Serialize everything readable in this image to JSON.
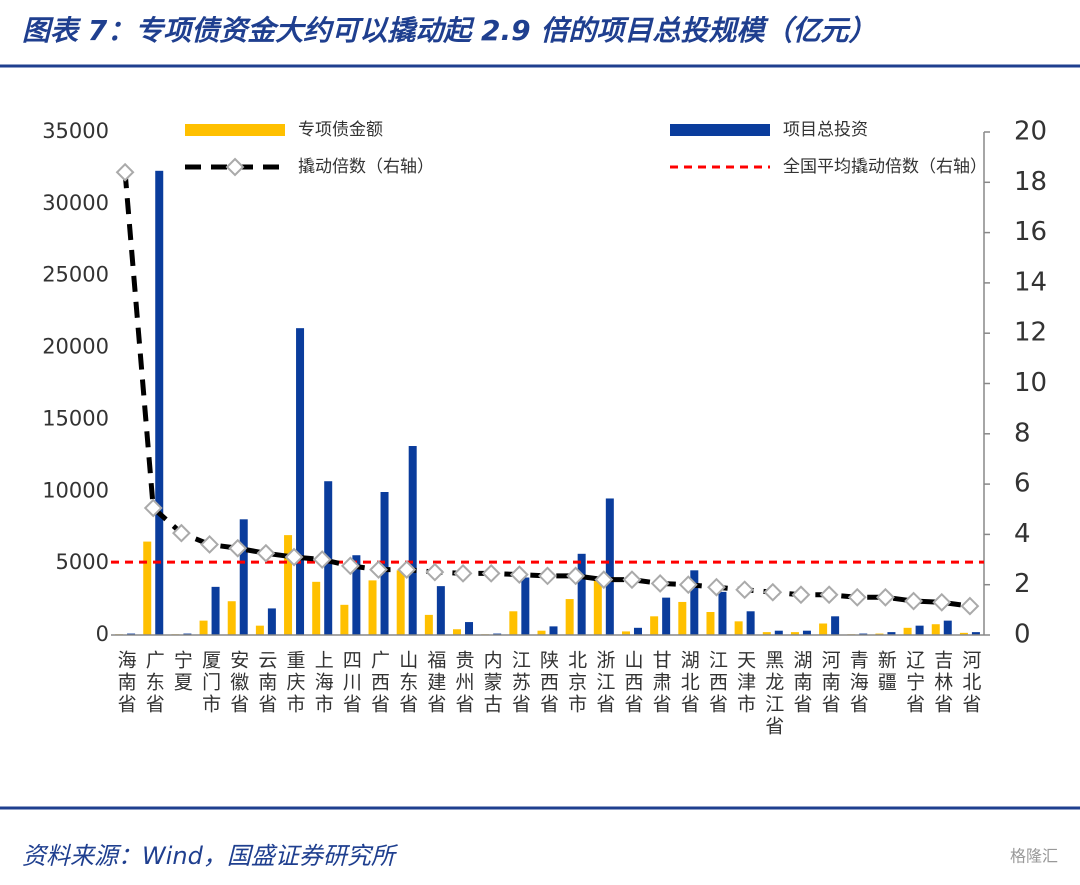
{
  "title": "图表 7：专项债资金大约可以撬动起 2.9 倍的项目总投规模（亿元）",
  "source": "资料来源：Wind，国盛证券研究所",
  "watermark": "格隆汇",
  "chart_data": {
    "type": "bar",
    "categories": [
      "海南省",
      "广东省",
      "宁夏",
      "厦门市",
      "安徽省",
      "云南省",
      "重庆市",
      "上海市",
      "四川省",
      "广西省",
      "山东省",
      "福建省",
      "贵州省",
      "内蒙古",
      "江苏省",
      "陕西省",
      "北京市",
      "浙江省",
      "山西省",
      "甘肃省",
      "湖北省",
      "江西省",
      "天津市",
      "黑龙江省",
      "湖南省",
      "河南省",
      "青海省",
      "新疆",
      "辽宁省",
      "吉林省",
      "河北省"
    ],
    "series": [
      {
        "name": "专项债金额",
        "type": "bar",
        "color": "#ffc000",
        "values": [
          50,
          6500,
          50,
          1000,
          2350,
          650,
          6950,
          3700,
          2100,
          3800,
          4500,
          1400,
          400,
          50,
          1650,
          300,
          2500,
          3800,
          250,
          1300,
          2300,
          1600,
          950,
          200,
          200,
          800,
          50,
          100,
          500,
          750,
          150
        ]
      },
      {
        "name": "项目总投资",
        "type": "bar",
        "color": "#0a3c9c",
        "values": [
          100,
          32300,
          100,
          3350,
          8050,
          1850,
          21350,
          10700,
          5550,
          9950,
          13150,
          3400,
          900,
          100,
          4000,
          600,
          5650,
          9500,
          500,
          2600,
          4500,
          3000,
          1650,
          300,
          300,
          1300,
          100,
          200,
          650,
          1000,
          200
        ]
      },
      {
        "name": "撬动倍数（右轴）",
        "type": "line",
        "axis": "y2",
        "color": "#000000",
        "values": [
          18.4,
          5.05,
          4.05,
          3.6,
          3.45,
          3.25,
          3.1,
          3.0,
          2.75,
          2.6,
          2.6,
          2.5,
          2.45,
          2.45,
          2.4,
          2.35,
          2.35,
          2.2,
          2.2,
          2.05,
          2.0,
          1.9,
          1.8,
          1.7,
          1.6,
          1.6,
          1.5,
          1.5,
          1.35,
          1.3,
          1.15
        ]
      }
    ],
    "reference_lines": [
      {
        "name": "全国平均撬动倍数（右轴）",
        "value": 2.9,
        "axis": "y2",
        "color": "#ff0000"
      }
    ],
    "ylim": [
      0,
      35000
    ],
    "yticks": [
      0,
      5000,
      10000,
      15000,
      20000,
      25000,
      30000,
      35000
    ],
    "y2lim": [
      0,
      20
    ],
    "y2ticks": [
      0,
      2,
      4,
      6,
      8,
      10,
      12,
      14,
      16,
      18,
      20
    ]
  }
}
